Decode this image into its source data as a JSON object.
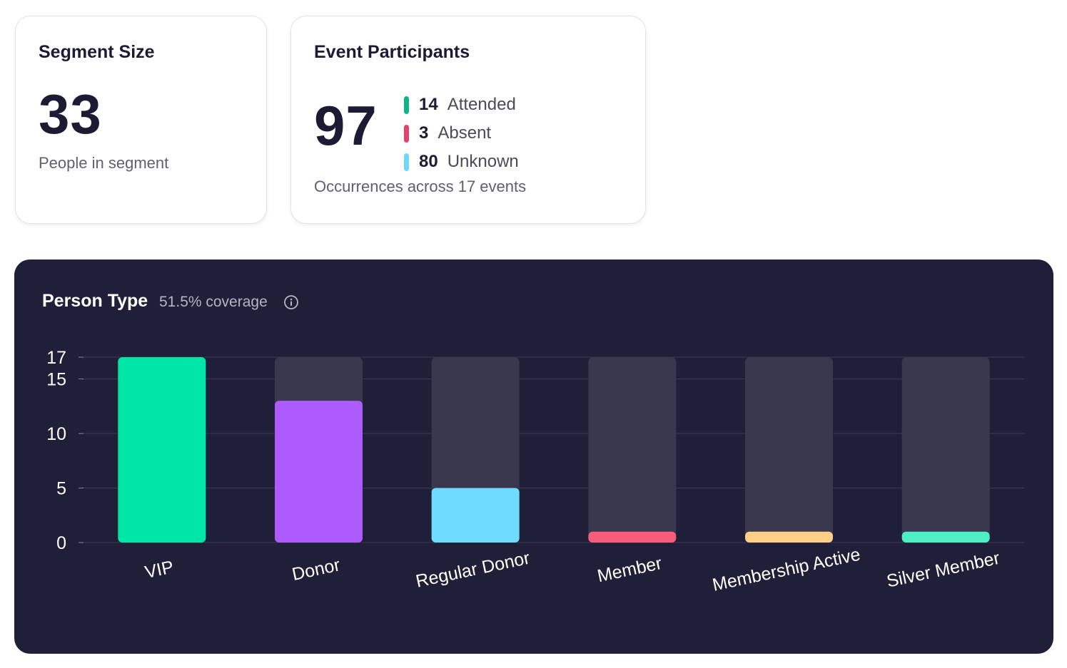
{
  "segment_card": {
    "title": "Segment Size",
    "value": "33",
    "caption": "People in segment"
  },
  "events_card": {
    "title": "Event Participants",
    "value": "97",
    "caption": "Occurrences across 17 events",
    "breakdown": [
      {
        "count": "14",
        "label": "Attended",
        "color": "#0fb38a"
      },
      {
        "count": "3",
        "label": "Absent",
        "color": "#e2436b"
      },
      {
        "count": "80",
        "label": "Unknown",
        "color": "#6fd9f5"
      }
    ]
  },
  "chart_panel": {
    "title": "Person Type",
    "coverage": "51.5% coverage",
    "info_icon": "info-circle-icon",
    "background": "#201f38"
  },
  "chart_data": {
    "type": "bar",
    "title": "Person Type",
    "categories": [
      "VIP",
      "Donor",
      "Regular Donor",
      "Member",
      "Membership Active",
      "Silver Member"
    ],
    "values": [
      17,
      13,
      5,
      1,
      1,
      1
    ],
    "colors": [
      "#00e5a8",
      "#ad5bfd",
      "#6fdcff",
      "#f95b7b",
      "#ffcf87",
      "#4cf0c4"
    ],
    "ylim": [
      0,
      17
    ],
    "yticks": [
      0,
      5,
      10,
      15,
      17
    ],
    "track_color": "#3a384e",
    "grid": true,
    "xlabel": "",
    "ylabel": ""
  }
}
